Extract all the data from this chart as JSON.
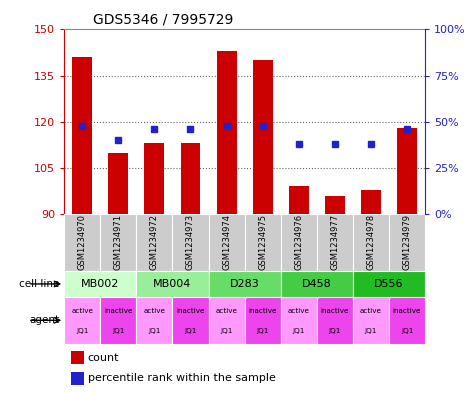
{
  "title": "GDS5346 / 7995729",
  "samples": [
    "GSM1234970",
    "GSM1234971",
    "GSM1234972",
    "GSM1234973",
    "GSM1234974",
    "GSM1234975",
    "GSM1234976",
    "GSM1234977",
    "GSM1234978",
    "GSM1234979"
  ],
  "counts": [
    141,
    110,
    113,
    113,
    143,
    140,
    99,
    96,
    98,
    118
  ],
  "percentiles": [
    48,
    40,
    46,
    46,
    48,
    48,
    38,
    38,
    38,
    46
  ],
  "ylim_left": [
    90,
    150
  ],
  "ylim_right": [
    0,
    100
  ],
  "yticks_left": [
    90,
    105,
    120,
    135,
    150
  ],
  "yticks_right": [
    0,
    25,
    50,
    75,
    100
  ],
  "agents": [
    "active",
    "inactive",
    "active",
    "inactive",
    "active",
    "inactive",
    "active",
    "inactive",
    "active",
    "inactive"
  ],
  "agent_jq": "JQ1",
  "bar_color": "#cc0000",
  "dot_color": "#2222cc",
  "tick_color_left": "#cc0000",
  "tick_color_right": "#2222cc",
  "grid_color": "#666666",
  "sample_bg": "#cccccc",
  "cell_line_data": [
    {
      "label": "MB002",
      "start": 0,
      "end": 1,
      "color": "#ccffcc"
    },
    {
      "label": "MB004",
      "start": 2,
      "end": 3,
      "color": "#99ee99"
    },
    {
      "label": "D283",
      "start": 4,
      "end": 5,
      "color": "#66dd66"
    },
    {
      "label": "D458",
      "start": 6,
      "end": 7,
      "color": "#44cc44"
    },
    {
      "label": "D556",
      "start": 8,
      "end": 9,
      "color": "#22bb22"
    }
  ],
  "agent_color_active": "#ff99ff",
  "agent_color_inactive": "#ee44ee"
}
